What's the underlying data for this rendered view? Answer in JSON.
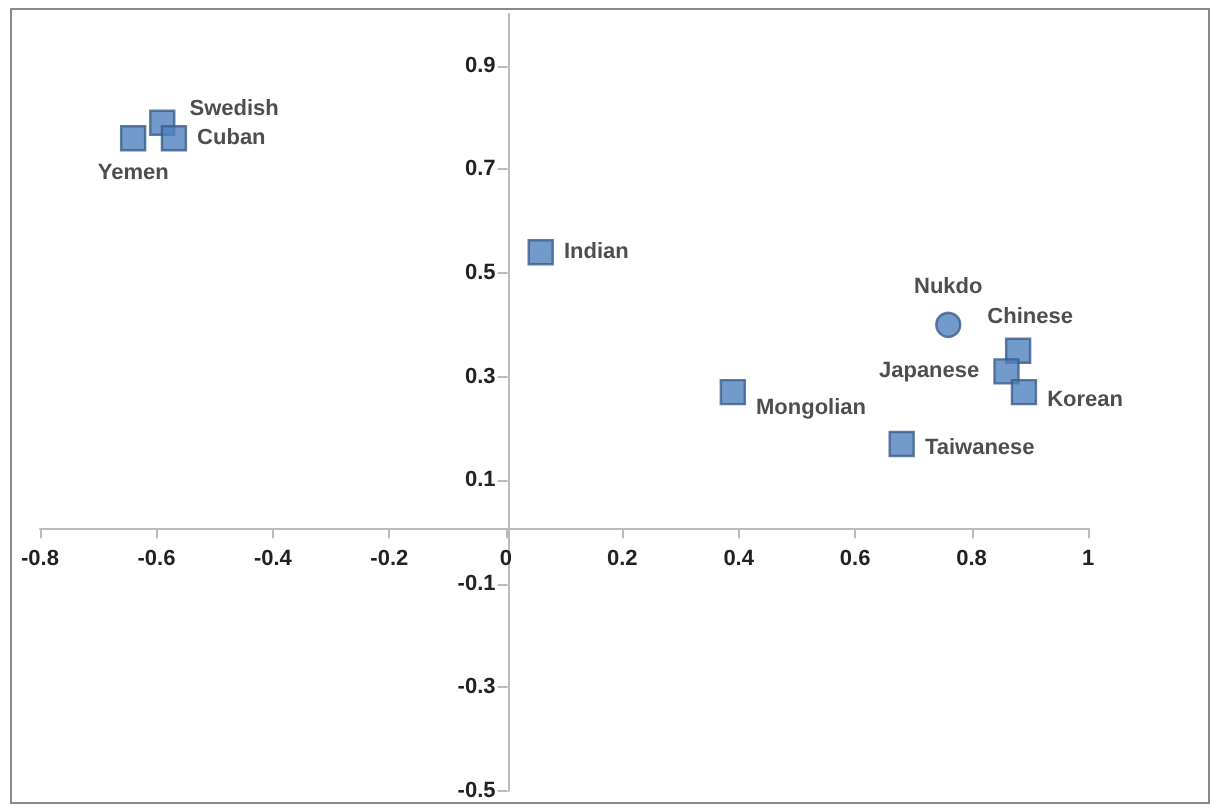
{
  "chart_data": {
    "type": "scatter",
    "xlim": [
      -0.8,
      1
    ],
    "ylim": [
      -0.5,
      1.0
    ],
    "xticks": [
      -0.8,
      -0.6,
      -0.4,
      -0.2,
      0,
      0.2,
      0.4,
      0.6,
      0.8,
      1
    ],
    "yticks": [
      -0.5,
      -0.3,
      -0.1,
      0.1,
      0.3,
      0.5,
      0.7,
      0.9
    ],
    "grid": false,
    "series": [
      {
        "marker": "square",
        "color": "#4f81bd",
        "x": [
          -0.59,
          -0.57,
          -0.64,
          0.06,
          0.88,
          0.86,
          0.89,
          0.39,
          0.68
        ],
        "values": [
          0.79,
          0.76,
          0.76,
          0.54,
          0.35,
          0.31,
          0.27,
          0.27,
          0.17
        ],
        "value_labels": [
          "Swedish",
          "Cuban",
          "Yemen",
          "Indian",
          "Chinese",
          "Japanese",
          "Korean",
          "Mongolian",
          "Taiwanese"
        ]
      },
      {
        "marker": "circle",
        "color": "#4f81bd",
        "x": [
          0.76
        ],
        "values": [
          0.4
        ],
        "value_labels": [
          "Nukdo"
        ]
      }
    ]
  }
}
